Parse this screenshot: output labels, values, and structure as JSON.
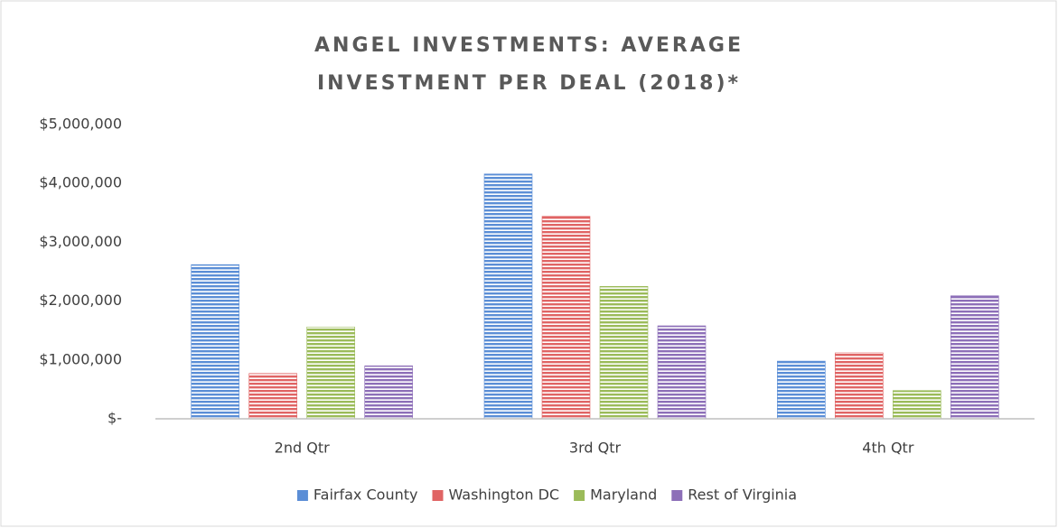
{
  "chart_data": {
    "type": "bar",
    "title": "ANGEL INVESTMENTS: AVERAGE INVESTMENT PER DEAL (2018)*",
    "categories": [
      "2nd Qtr",
      "3rd Qtr",
      "4th Qtr"
    ],
    "series": [
      {
        "name": "Fairfax County",
        "color": "#5b8ed6",
        "values": [
          2620000,
          4160000,
          980000
        ]
      },
      {
        "name": "Washington DC",
        "color": "#e06464",
        "values": [
          770000,
          3440000,
          1120000
        ]
      },
      {
        "name": "Maryland",
        "color": "#9bbb59",
        "values": [
          1560000,
          2250000,
          480000
        ]
      },
      {
        "name": "Rest of Virginia",
        "color": "#8d6fb8",
        "values": [
          900000,
          1580000,
          2090000
        ]
      }
    ],
    "ylim": [
      0,
      5000000
    ],
    "yticks": [
      {
        "value": 0,
        "label": "$-"
      },
      {
        "value": 1000000,
        "label": "$1,000,000"
      },
      {
        "value": 2000000,
        "label": "$2,000,000"
      },
      {
        "value": 3000000,
        "label": "$3,000,000"
      },
      {
        "value": 4000000,
        "label": "$4,000,000"
      },
      {
        "value": 5000000,
        "label": "$5,000,000"
      }
    ],
    "grid": false,
    "legend": "bottom"
  }
}
